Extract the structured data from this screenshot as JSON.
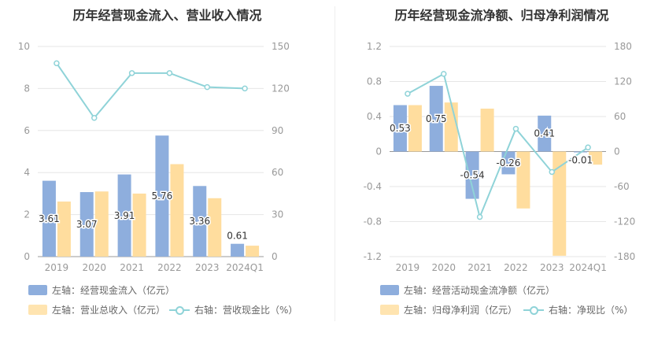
{
  "chart_data": [
    {
      "type": "bar",
      "title": "历年经营现金流入、营业收入情况",
      "categories": [
        "2019",
        "2020",
        "2021",
        "2022",
        "2023",
        "2024Q1"
      ],
      "left_axis": {
        "ylim": [
          0,
          10
        ],
        "ticks": [
          "0",
          "2",
          "4",
          "6",
          "8",
          "10"
        ]
      },
      "right_axis": {
        "ylim": [
          0,
          150
        ],
        "ticks": [
          "0",
          "30",
          "60",
          "90",
          "120",
          "150"
        ]
      },
      "grid": true,
      "legend_position": "bottom",
      "series": [
        {
          "name": "左轴：经营现金流入（亿元）",
          "kind": "bar",
          "axis": "left",
          "color": "#8eaedd",
          "values": [
            3.61,
            3.07,
            3.91,
            5.76,
            3.36,
            0.61
          ],
          "labels": [
            "3.61",
            "3.07",
            "3.91",
            "5.76",
            "3.36",
            "0.61"
          ]
        },
        {
          "name": "左轴：营业总收入（亿元）",
          "kind": "bar",
          "axis": "left",
          "color": "#ffdd9e",
          "values": [
            2.62,
            3.1,
            3.0,
            4.4,
            2.78,
            0.52
          ]
        },
        {
          "name": "右轴：营收现金比（%）",
          "kind": "line",
          "axis": "right",
          "color": "#8fd3d8",
          "values": [
            138,
            99,
            131,
            131,
            121,
            120
          ]
        }
      ]
    },
    {
      "type": "bar",
      "title": "历年经营现金流净额、归母净利润情况",
      "categories": [
        "2019",
        "2020",
        "2021",
        "2022",
        "2023",
        "2024Q1"
      ],
      "left_axis": {
        "ylim": [
          -1.2,
          1.2
        ],
        "ticks": [
          "-1.2",
          "-0.8",
          "-0.4",
          "0",
          "0.4",
          "0.8",
          "1.2"
        ]
      },
      "right_axis": {
        "ylim": [
          -180,
          180
        ],
        "ticks": [
          "-180",
          "-120",
          "-60",
          "0",
          "60",
          "120",
          "180"
        ]
      },
      "grid": true,
      "legend_position": "bottom",
      "series": [
        {
          "name": "左轴：经营活动现金流净额（亿元）",
          "kind": "bar",
          "axis": "left",
          "color": "#8eaedd",
          "values": [
            0.53,
            0.75,
            -0.54,
            -0.26,
            0.41,
            -0.01
          ],
          "labels": [
            "0.53",
            "0.75",
            "-0.54",
            "-0.26",
            "0.41",
            "-0.01"
          ]
        },
        {
          "name": "左轴：归母净利润（亿元）",
          "kind": "bar",
          "axis": "left",
          "color": "#ffdd9e",
          "values": [
            0.53,
            0.56,
            0.49,
            -0.65,
            -1.19,
            -0.15
          ]
        },
        {
          "name": "右轴：净现比（%）",
          "kind": "line",
          "axis": "right",
          "color": "#8fd3d8",
          "values": [
            99,
            133,
            -112,
            39,
            -35,
            7
          ]
        }
      ]
    }
  ]
}
